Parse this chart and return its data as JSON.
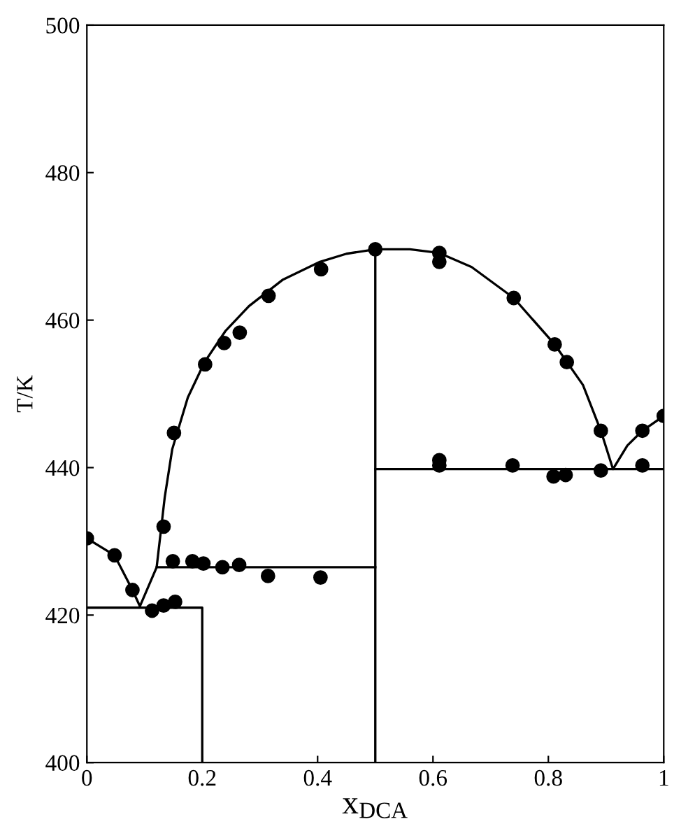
{
  "chart_data": {
    "type": "scatter",
    "xlabel": "x$_{DCA}$",
    "ylabel": "T/K",
    "xlim": [
      0,
      1
    ],
    "ylim": [
      400,
      500
    ],
    "xticks": [
      0,
      0.2,
      0.4,
      0.6,
      0.8,
      1
    ],
    "yticks": [
      400,
      420,
      440,
      460,
      480,
      500
    ],
    "grid": false,
    "legend": false,
    "series": [
      {
        "color": "#000000",
        "marker": "circle",
        "x": [
          0,
          0.048,
          0.079,
          0.113,
          0.133,
          0.153,
          0.133,
          0.151,
          0.205,
          0.238,
          0.265,
          0.315,
          0.406,
          0.5,
          0.149,
          0.183,
          0.202,
          0.235,
          0.264,
          0.314,
          0.405,
          0.611,
          0.611,
          0.74,
          0.811,
          0.832,
          0.891,
          0.963,
          1.0,
          0.611,
          0.611,
          0.738,
          0.809,
          0.83,
          0.891,
          0.963
        ],
        "values": [
          430.4,
          428.1,
          423.4,
          420.6,
          421.3,
          421.8,
          432.0,
          444.7,
          454.0,
          456.9,
          458.3,
          463.3,
          466.9,
          469.6,
          427.3,
          427.3,
          427.0,
          426.5,
          426.8,
          425.3,
          425.1,
          469.1,
          467.9,
          463.0,
          456.7,
          454.3,
          445.0,
          445.0,
          447.0,
          441.0,
          440.3,
          440.3,
          438.8,
          439.0,
          439.6,
          440.3
        ]
      },
      {
        "type": "line",
        "color": "#000000",
        "marker": "none",
        "line_style": "solid",
        "x": [
          0,
          0.048,
          0.079,
          0.092,
          0.121,
          0.135,
          0.148,
          0.175,
          0.204,
          0.24,
          0.281,
          0.34,
          0.404,
          0.45,
          0.5
        ],
        "values": [
          430.4,
          428.1,
          423.4,
          421.2,
          426.5,
          436,
          442.5,
          449.5,
          454.3,
          458.5,
          461.9,
          465.5,
          467.9,
          469,
          469.6
        ]
      },
      {
        "type": "line",
        "color": "#000000",
        "marker": "none",
        "line_style": "solid",
        "x": [
          0.5,
          0.56,
          0.611,
          0.667,
          0.74,
          0.811,
          0.86,
          0.891,
          0.912,
          0.937,
          0.963,
          1.0
        ],
        "values": [
          469.6,
          469.6,
          469.1,
          467.2,
          463.0,
          456.7,
          451.2,
          445.0,
          439.8,
          443.0,
          445.0,
          447.0
        ]
      },
      {
        "type": "line",
        "color": "#000000",
        "marker": "none",
        "line_style": "solid",
        "x": [
          0,
          0.2,
          0.2
        ],
        "values": [
          421,
          421,
          400
        ]
      },
      {
        "type": "line",
        "color": "#000000",
        "marker": "none",
        "line_style": "solid",
        "x": [
          0.121,
          0.5
        ],
        "values": [
          426.5,
          426.5
        ]
      },
      {
        "type": "line",
        "color": "#000000",
        "marker": "none",
        "line_style": "solid",
        "x": [
          0.5,
          0.5
        ],
        "values": [
          400,
          469.6
        ]
      },
      {
        "type": "line",
        "color": "#000000",
        "marker": "none",
        "line_style": "solid",
        "x": [
          0.5,
          1.0
        ],
        "values": [
          439.8,
          439.8
        ]
      }
    ]
  }
}
